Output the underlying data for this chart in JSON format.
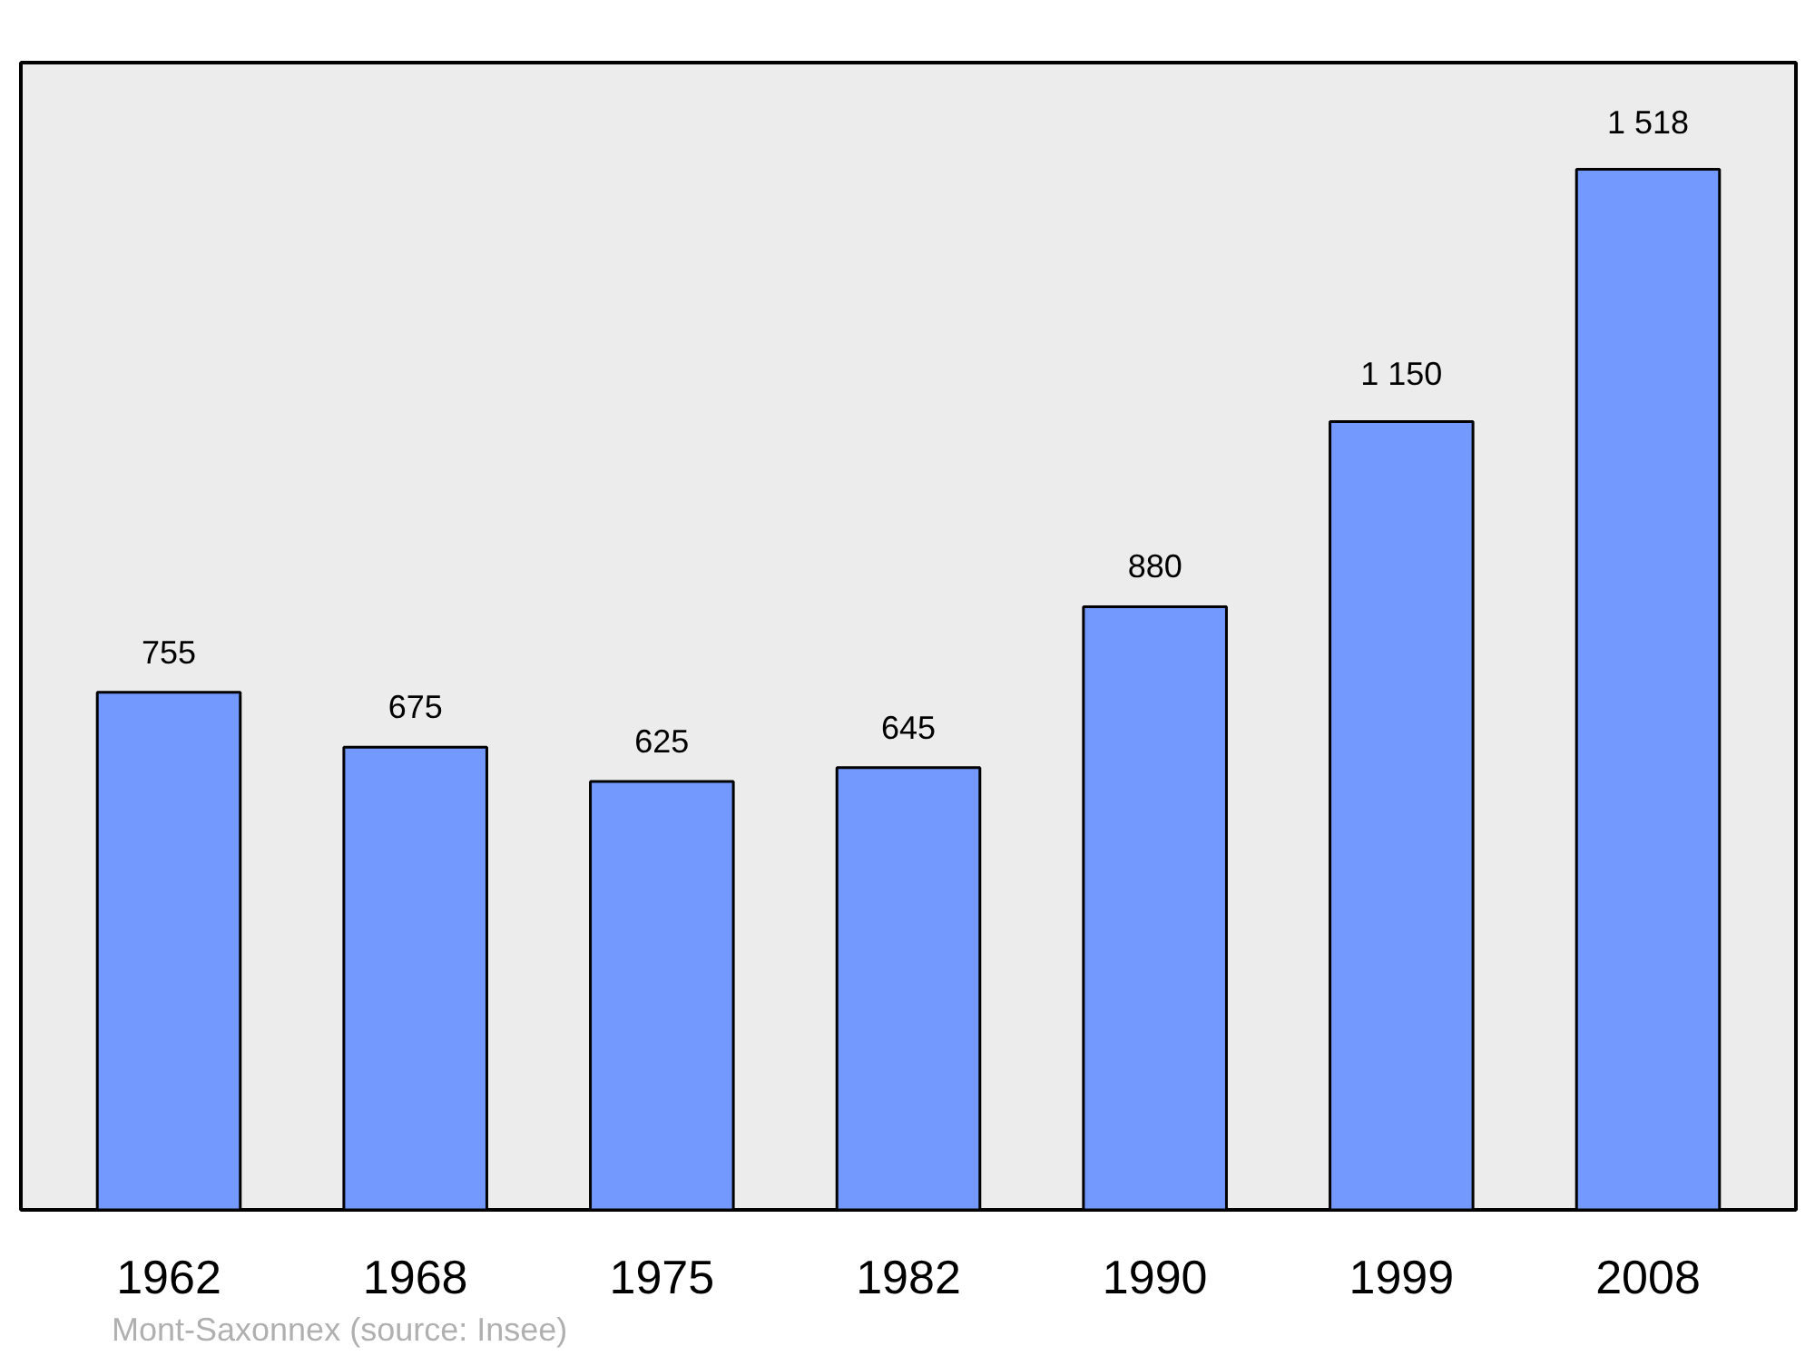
{
  "chart_data": {
    "type": "bar",
    "categories": [
      "1962",
      "1968",
      "1975",
      "1982",
      "1990",
      "1999",
      "2008"
    ],
    "values": [
      755,
      675,
      625,
      645,
      880,
      1150,
      1518
    ],
    "value_labels": [
      "755",
      "675",
      "625",
      "645",
      "880",
      "1 150",
      "1 518"
    ],
    "color": "#7399ff",
    "grid": false,
    "annotations": [
      "Mont-Saxonnex",
      "(source: Insee)"
    ]
  }
}
